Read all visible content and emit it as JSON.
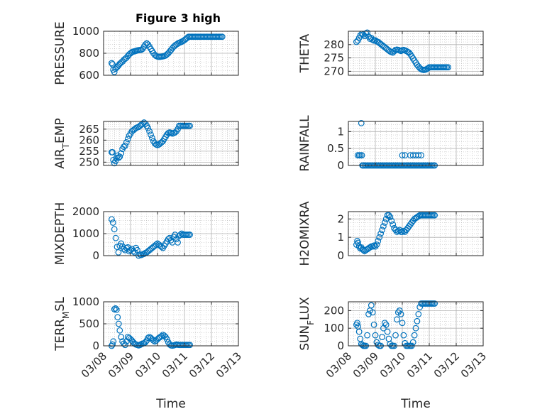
{
  "colors": {
    "marker": "#0072BD",
    "axis": "#262626",
    "grid": "#b0b0b0"
  },
  "chart_data": [
    {
      "id": "pressure",
      "type": "scatter",
      "title": "Figure 3 high",
      "ylabel": "PRESSURE",
      "ylim": [
        600,
        1000
      ],
      "yticks": [
        "600",
        "800",
        "1000"
      ],
      "xlabel": "",
      "xlim": [
        0,
        5
      ],
      "xticks": [],
      "grid": true,
      "x": [
        0.3,
        0.33,
        0.36,
        0.4,
        0.44,
        0.48,
        0.52,
        0.56,
        0.6,
        0.65,
        0.7,
        0.75,
        0.8,
        0.85,
        0.9,
        0.95,
        1.0,
        1.05,
        1.1,
        1.15,
        1.2,
        1.25,
        1.3,
        1.35,
        1.4,
        1.45,
        1.5,
        1.55,
        1.6,
        1.65,
        1.7,
        1.75,
        1.8,
        1.85,
        1.9,
        1.95,
        2.0,
        2.05,
        2.1,
        2.15,
        2.2,
        2.25,
        2.3,
        2.35,
        2.4,
        2.45,
        2.5,
        2.55,
        2.6,
        2.65,
        2.7,
        2.75,
        2.8,
        2.85,
        2.9,
        2.95,
        3.0,
        3.05,
        3.1,
        3.15,
        3.2,
        3.25,
        3.3,
        3.35,
        3.4,
        3.45,
        3.5,
        3.55,
        3.6,
        3.65,
        3.7,
        3.75,
        3.8,
        3.85,
        3.9,
        3.95,
        4.0,
        4.05,
        4.1,
        4.15,
        4.2,
        4.25,
        4.3,
        4.35,
        4.4
      ],
      "y": [
        710,
        700,
        650,
        630,
        660,
        670,
        680,
        690,
        705,
        715,
        725,
        740,
        750,
        760,
        775,
        790,
        800,
        810,
        815,
        818,
        822,
        826,
        828,
        830,
        832,
        840,
        860,
        880,
        890,
        880,
        860,
        840,
        820,
        800,
        785,
        775,
        770,
        768,
        768,
        770,
        772,
        775,
        780,
        790,
        800,
        815,
        830,
        845,
        860,
        870,
        880,
        888,
        895,
        900,
        905,
        912,
        920,
        930,
        940,
        950,
        950,
        950,
        950,
        950,
        950,
        950,
        950,
        950,
        950,
        950,
        950,
        950,
        950,
        950,
        950,
        950,
        950,
        950,
        950,
        950,
        950,
        950,
        950,
        950,
        950
      ]
    },
    {
      "id": "theta",
      "type": "scatter",
      "ylabel": "THETA",
      "ylim": [
        268.5,
        285
      ],
      "yticks": [
        "270",
        "275",
        "280"
      ],
      "xlabel": "",
      "xlim": [
        0,
        5
      ],
      "xticks": [],
      "grid": true,
      "x": [
        0.3,
        0.35,
        0.4,
        0.45,
        0.5,
        0.55,
        0.6,
        0.65,
        0.7,
        0.75,
        0.8,
        0.85,
        0.9,
        0.95,
        1.0,
        1.05,
        1.1,
        1.15,
        1.2,
        1.25,
        1.3,
        1.35,
        1.4,
        1.45,
        1.5,
        1.55,
        1.6,
        1.65,
        1.7,
        1.75,
        1.8,
        1.85,
        1.9,
        1.95,
        2.0,
        2.05,
        2.1,
        2.15,
        2.2,
        2.25,
        2.3,
        2.35,
        2.4,
        2.45,
        2.5,
        2.55,
        2.6,
        2.65,
        2.7,
        2.75,
        2.8,
        2.85,
        2.9,
        2.95,
        3.0,
        3.05,
        3.1,
        3.15,
        3.2,
        3.25,
        3.3,
        3.35,
        3.4,
        3.45,
        3.5,
        3.55,
        3.6,
        3.65,
        3.7
      ],
      "y": [
        281,
        281.5,
        282.5,
        283.5,
        284,
        283.8,
        283.2,
        284.2,
        284.5,
        283,
        282.2,
        282.5,
        281.8,
        281.5,
        281.6,
        281.2,
        281,
        280.6,
        280.2,
        279.8,
        279.4,
        279,
        278.6,
        278.2,
        277.8,
        277.4,
        277.2,
        277,
        277.5,
        278,
        278.1,
        278,
        277.8,
        277.6,
        277.9,
        278,
        277.8,
        277.6,
        277.3,
        277,
        276.4,
        275.6,
        274.8,
        274,
        273.2,
        272.4,
        271.8,
        271.2,
        270.8,
        270.6,
        270.5,
        270.6,
        270.8,
        271.1,
        271.5,
        271.5,
        271.5,
        271.5,
        271.5,
        271.5,
        271.5,
        271.5,
        271.5,
        271.5,
        271.5,
        271.5,
        271.5,
        271.5,
        271.5
      ]
    },
    {
      "id": "air_temp",
      "type": "scatter",
      "ylabel": "AIR_TEMP",
      "ylim": [
        248.5,
        268.5
      ],
      "yticks": [
        "250",
        "255",
        "260",
        "265"
      ],
      "xlabel": "",
      "xlim": [
        0,
        5
      ],
      "xticks": [],
      "grid": true,
      "x": [
        0.3,
        0.33,
        0.36,
        0.4,
        0.44,
        0.48,
        0.52,
        0.56,
        0.6,
        0.65,
        0.7,
        0.75,
        0.8,
        0.85,
        0.9,
        0.95,
        1.0,
        1.05,
        1.1,
        1.15,
        1.2,
        1.25,
        1.3,
        1.35,
        1.4,
        1.45,
        1.5,
        1.55,
        1.6,
        1.65,
        1.7,
        1.75,
        1.8,
        1.85,
        1.9,
        1.95,
        2.0,
        2.05,
        2.1,
        2.15,
        2.2,
        2.25,
        2.3,
        2.35,
        2.4,
        2.45,
        2.5,
        2.55,
        2.6,
        2.65,
        2.7,
        2.75,
        2.8,
        2.85,
        2.9,
        2.95,
        3.0,
        3.05,
        3.1,
        3.15,
        3.2
      ],
      "y": [
        254.5,
        254.5,
        251,
        249.5,
        250.5,
        252,
        253,
        252,
        252.5,
        254,
        256,
        257,
        257.5,
        259,
        260.5,
        262,
        263,
        264,
        264.5,
        265,
        265.5,
        265.8,
        266,
        266.5,
        267,
        267.5,
        268,
        267.5,
        266.5,
        265.5,
        264,
        262.5,
        261,
        259.5,
        258.5,
        258,
        257.8,
        258,
        258.5,
        259,
        259.5,
        260.5,
        261.5,
        262.5,
        263.2,
        263.5,
        263.3,
        263,
        263.2,
        263.5,
        264,
        265,
        266.5,
        266.5,
        266.5,
        266.5,
        266.5,
        266.5,
        266.5,
        266.5,
        266.5
      ]
    },
    {
      "id": "rainfall",
      "type": "scatter",
      "ylabel": "RAINFALL",
      "ylim": [
        0,
        1.3
      ],
      "yticks": [
        "0",
        "0.5",
        "1"
      ],
      "xlabel": "",
      "xlim": [
        0,
        5
      ],
      "xticks": [],
      "grid": true,
      "x": [
        0.35,
        0.4,
        0.45,
        0.48,
        0.5,
        0.52,
        0.55,
        0.6,
        0.65,
        0.7,
        0.75,
        0.8,
        0.85,
        0.9,
        0.95,
        1.0,
        1.05,
        1.1,
        1.15,
        1.2,
        1.25,
        1.3,
        1.35,
        1.4,
        1.45,
        1.5,
        1.55,
        1.6,
        1.65,
        1.7,
        1.75,
        1.8,
        1.85,
        1.9,
        1.95,
        2.0,
        2.05,
        2.1,
        2.15,
        2.2,
        2.25,
        2.3,
        2.35,
        2.4,
        2.45,
        2.5,
        2.55,
        2.6,
        2.65,
        2.7,
        2.75,
        2.8,
        2.85,
        2.9,
        2.95,
        3.0,
        3.05,
        3.1,
        3.15,
        3.2,
        2.0,
        2.1,
        2.3,
        2.4,
        2.5,
        2.6,
        2.7
      ],
      "y": [
        0.3,
        0.3,
        0.3,
        1.25,
        0.3,
        0,
        0,
        0,
        0,
        0,
        0,
        0,
        0,
        0,
        0,
        0,
        0,
        0,
        0,
        0,
        0,
        0,
        0,
        0,
        0,
        0,
        0,
        0,
        0,
        0,
        0,
        0,
        0,
        0,
        0,
        0,
        0,
        0,
        0,
        0,
        0,
        0,
        0,
        0,
        0,
        0,
        0,
        0,
        0,
        0,
        0,
        0,
        0,
        0,
        0,
        0,
        0,
        0,
        0,
        0,
        0.3,
        0.3,
        0.3,
        0.3,
        0.3,
        0.3,
        0.3
      ]
    },
    {
      "id": "mixdepth",
      "type": "scatter",
      "ylabel": "MIXDEPTH",
      "ylim": [
        0,
        2000
      ],
      "yticks": [
        "0",
        "1000",
        "2000"
      ],
      "xlabel": "",
      "xlim": [
        0,
        5
      ],
      "xticks": [],
      "grid": true,
      "x": [
        0.3,
        0.35,
        0.4,
        0.45,
        0.5,
        0.55,
        0.6,
        0.65,
        0.7,
        0.75,
        0.8,
        0.85,
        0.9,
        0.95,
        1.0,
        1.05,
        1.1,
        1.15,
        1.2,
        1.25,
        1.3,
        1.35,
        1.4,
        1.45,
        1.5,
        1.55,
        1.6,
        1.65,
        1.7,
        1.75,
        1.8,
        1.85,
        1.9,
        1.95,
        2.0,
        2.05,
        2.1,
        2.15,
        2.2,
        2.25,
        2.3,
        2.35,
        2.4,
        2.45,
        2.5,
        2.55,
        2.6,
        2.65,
        2.7,
        2.75,
        2.8,
        2.85,
        2.9,
        2.95,
        3.0,
        3.05,
        3.1,
        3.15,
        3.2
      ],
      "y": [
        1650,
        1500,
        1200,
        800,
        400,
        150,
        450,
        550,
        420,
        300,
        250,
        350,
        380,
        200,
        250,
        300,
        200,
        150,
        350,
        250,
        0,
        50,
        30,
        60,
        80,
        120,
        150,
        200,
        250,
        300,
        350,
        400,
        450,
        500,
        550,
        500,
        450,
        400,
        350,
        450,
        550,
        650,
        750,
        800,
        700,
        600,
        850,
        950,
        750,
        600,
        900,
        950,
        1000,
        950,
        950,
        950,
        950,
        950,
        950
      ]
    },
    {
      "id": "h2omixra",
      "type": "scatter",
      "ylabel": "H2OMIXRA",
      "ylim": [
        0,
        2.4
      ],
      "yticks": [
        "0",
        "1",
        "2"
      ],
      "xlabel": "",
      "xlim": [
        0,
        5
      ],
      "xticks": [],
      "grid": true,
      "x": [
        0.3,
        0.33,
        0.36,
        0.4,
        0.44,
        0.48,
        0.52,
        0.56,
        0.6,
        0.65,
        0.7,
        0.75,
        0.8,
        0.85,
        0.9,
        0.95,
        1.0,
        1.05,
        1.1,
        1.15,
        1.2,
        1.25,
        1.3,
        1.35,
        1.4,
        1.45,
        1.5,
        1.55,
        1.6,
        1.65,
        1.7,
        1.75,
        1.8,
        1.85,
        1.9,
        1.95,
        2.0,
        2.05,
        2.1,
        2.15,
        2.2,
        2.25,
        2.3,
        2.35,
        2.4,
        2.45,
        2.5,
        2.55,
        2.6,
        2.65,
        2.7,
        2.75,
        2.8,
        2.85,
        2.9,
        2.95,
        3.0,
        3.05,
        3.1,
        3.15,
        3.2
      ],
      "y": [
        0.6,
        0.8,
        0.7,
        0.5,
        0.4,
        0.45,
        0.35,
        0.3,
        0.25,
        0.3,
        0.35,
        0.4,
        0.45,
        0.5,
        0.5,
        0.55,
        0.5,
        0.6,
        0.8,
        1.0,
        1.2,
        1.4,
        1.6,
        1.8,
        2.0,
        2.2,
        2.2,
        2.1,
        1.9,
        1.7,
        1.5,
        1.4,
        1.3,
        1.35,
        1.4,
        1.3,
        1.3,
        1.35,
        1.3,
        1.4,
        1.5,
        1.6,
        1.7,
        1.8,
        1.9,
        2.0,
        2.05,
        2.1,
        2.15,
        2.2,
        2.2,
        2.2,
        2.2,
        2.2,
        2.2,
        2.2,
        2.2,
        2.2,
        2.2,
        2.2,
        2.2
      ]
    },
    {
      "id": "terr_msl",
      "type": "scatter",
      "ylabel": "TERR_MSL",
      "ylim": [
        0,
        1000
      ],
      "yticks": [
        "0",
        "500",
        "1000"
      ],
      "xlabel": "Time",
      "xlim": [
        0,
        5
      ],
      "xticks": [
        "03/08",
        "03/09",
        "03/10",
        "03/11",
        "03/12",
        "03/13"
      ],
      "grid": true,
      "x": [
        0.3,
        0.33,
        0.36,
        0.4,
        0.44,
        0.48,
        0.52,
        0.56,
        0.6,
        0.65,
        0.7,
        0.75,
        0.8,
        0.85,
        0.9,
        0.95,
        1.0,
        1.05,
        1.1,
        1.15,
        1.2,
        1.25,
        1.3,
        1.35,
        1.4,
        1.45,
        1.5,
        1.55,
        1.6,
        1.65,
        1.7,
        1.75,
        1.8,
        1.85,
        1.9,
        1.95,
        2.0,
        2.05,
        2.1,
        2.15,
        2.2,
        2.25,
        2.3,
        2.35,
        2.4,
        2.45,
        2.5,
        2.55,
        2.6,
        2.65,
        2.7,
        2.75,
        2.8,
        2.85,
        2.9,
        2.95,
        3.0,
        3.05,
        3.1,
        3.15,
        3.2
      ],
      "y": [
        0,
        30,
        100,
        830,
        850,
        820,
        650,
        500,
        350,
        200,
        100,
        50,
        20,
        100,
        200,
        180,
        150,
        120,
        80,
        50,
        30,
        20,
        10,
        20,
        40,
        50,
        60,
        80,
        120,
        180,
        200,
        180,
        150,
        120,
        100,
        120,
        150,
        180,
        200,
        220,
        250,
        230,
        200,
        150,
        80,
        30,
        10,
        5,
        10,
        20,
        30,
        25,
        20,
        20,
        20,
        20,
        20,
        20,
        20,
        20,
        20
      ]
    },
    {
      "id": "sun_flux",
      "type": "scatter",
      "ylabel": "SUN_FLUX",
      "ylim": [
        0,
        250
      ],
      "yticks": [
        "0",
        "100",
        "200"
      ],
      "xlabel": "Time",
      "xlim": [
        0,
        5
      ],
      "xticks": [
        "03/08",
        "03/09",
        "03/10",
        "03/11",
        "03/12",
        "03/13"
      ],
      "grid": true,
      "x": [
        0.3,
        0.33,
        0.36,
        0.4,
        0.44,
        0.48,
        0.52,
        0.56,
        0.6,
        0.65,
        0.7,
        0.75,
        0.8,
        0.85,
        0.9,
        0.95,
        1.0,
        1.05,
        1.1,
        1.15,
        1.2,
        1.25,
        1.3,
        1.35,
        1.4,
        1.45,
        1.5,
        1.55,
        1.6,
        1.65,
        1.7,
        1.75,
        1.8,
        1.85,
        1.9,
        1.95,
        2.0,
        2.05,
        2.1,
        2.15,
        2.2,
        2.25,
        2.3,
        2.35,
        2.4,
        2.45,
        2.5,
        2.55,
        2.6,
        2.65,
        2.7,
        2.75,
        2.8,
        2.85,
        2.9,
        2.95,
        3.0,
        3.05,
        3.1,
        3.15,
        3.2
      ],
      "y": [
        120,
        130,
        110,
        80,
        40,
        10,
        5,
        0,
        0,
        0,
        60,
        180,
        200,
        230,
        190,
        120,
        60,
        20,
        5,
        0,
        0,
        50,
        100,
        130,
        120,
        80,
        40,
        10,
        0,
        0,
        0,
        60,
        150,
        190,
        200,
        180,
        130,
        60,
        15,
        0,
        0,
        0,
        0,
        0,
        20,
        60,
        100,
        140,
        180,
        220,
        240,
        240,
        240,
        240,
        240,
        240,
        240,
        240,
        240,
        240,
        240
      ]
    }
  ]
}
